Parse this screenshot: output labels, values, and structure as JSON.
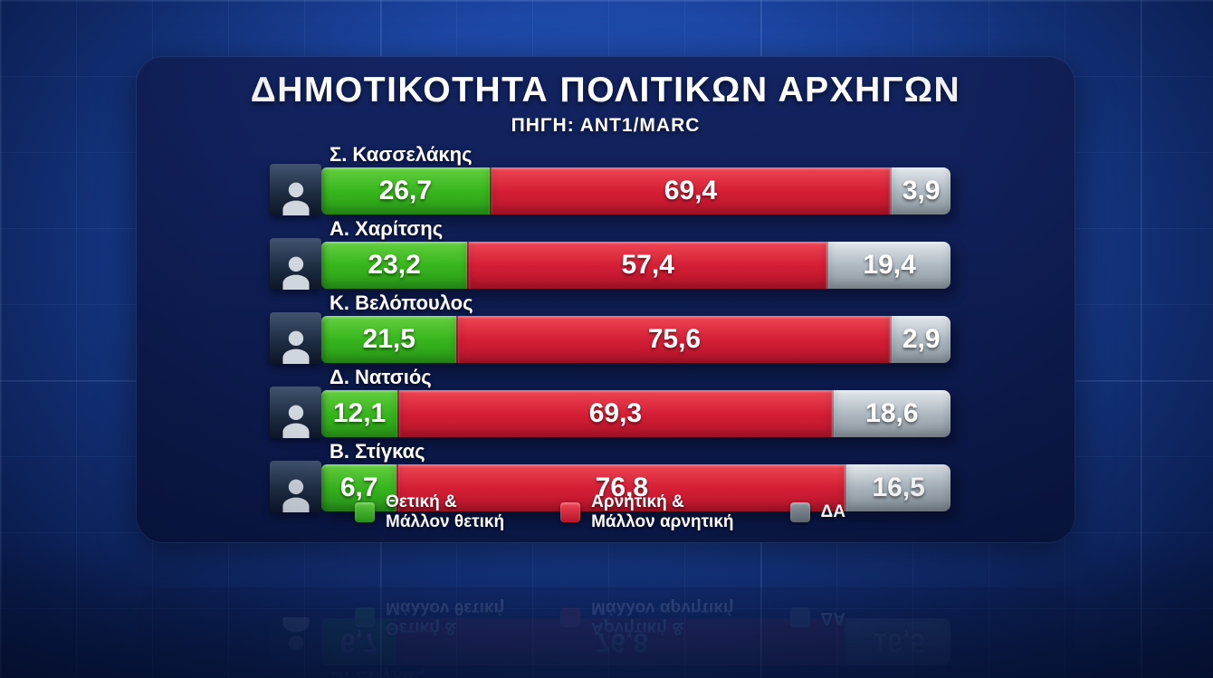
{
  "header": {
    "title": "ΔΗΜΟΤΙΚΟΤΗΤΑ ΠΟΛΙΤΙΚΩΝ ΑΡΧΗΓΩΝ",
    "source": "ΠΗΓΗ: ΑΝΤ1/MARC"
  },
  "chart_data": {
    "type": "bar",
    "orientation": "horizontal",
    "stacked": true,
    "title": "ΔΗΜΟΤΙΚΟΤΗΤΑ ΠΟΛΙΤΙΚΩΝ ΑΡΧΗΓΩΝ",
    "source": "ΠΗΓΗ: ΑΝΤ1/MARC",
    "categories": [
      "Σ. Κασσελάκης",
      "Α. Χαρίτσης",
      "Κ. Βελόπουλος",
      "Δ. Νατσιός",
      "Β. Στίγκας"
    ],
    "series": [
      {
        "name": "Θετική & Μάλλον θετική",
        "color": "#38b61d",
        "values": [
          26.7,
          23.2,
          21.5,
          12.1,
          6.7
        ]
      },
      {
        "name": "Αρνητική & Μάλλον αρνητική",
        "color": "#d51f36",
        "values": [
          69.4,
          57.4,
          75.6,
          69.3,
          76.8
        ]
      },
      {
        "name": "ΔΑ",
        "color": "#9aa5ac",
        "values": [
          3.9,
          19.4,
          2.9,
          18.6,
          16.5
        ]
      }
    ],
    "value_labels": true,
    "xlim": [
      0,
      100
    ],
    "legend_position": "bottom"
  },
  "rows": [
    {
      "name": "Σ. Κασσελάκης",
      "positive": "26,7",
      "negative": "69,4",
      "dk": "3,9"
    },
    {
      "name": "Α. Χαρίτσης",
      "positive": "23,2",
      "negative": "57,4",
      "dk": "19,4"
    },
    {
      "name": "Κ. Βελόπουλος",
      "positive": "21,5",
      "negative": "75,6",
      "dk": "2,9"
    },
    {
      "name": "Δ. Νατσιός",
      "positive": "12,1",
      "negative": "69,3",
      "dk": "18,6"
    },
    {
      "name": "Β. Στίγκας",
      "positive": "6,7",
      "negative": "76,8",
      "dk": "16,5"
    }
  ],
  "legend": [
    {
      "line1": "Θετική &",
      "line2": "Μάλλον θετική"
    },
    {
      "line1": "Αρνητική &",
      "line2": "Μάλλον αρνητική"
    },
    {
      "line1": "ΔΑ",
      "line2": ""
    }
  ]
}
